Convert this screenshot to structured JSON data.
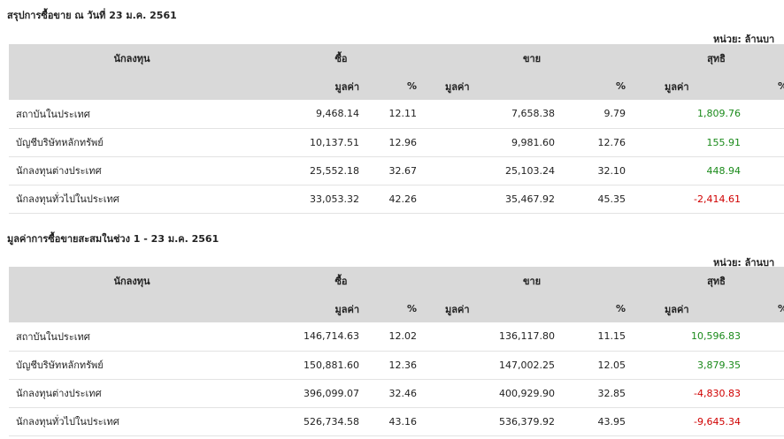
{
  "colors": {
    "positive": "#1a8a1a",
    "negative": "#d00000",
    "header_bg": "#d9d9d9",
    "accent": "#f5a623"
  },
  "columns": {
    "investor": "นักลงทุน",
    "buy": "ซื้อ",
    "sell": "ขาย",
    "net": "สุทธิ",
    "value": "มูลค่า",
    "percent": "%"
  },
  "daily": {
    "title": "สรุปการซื้อขาย ณ วันที่ 23 ม.ค. 2561",
    "unit": "หน่วย: ล้านบา",
    "rows": [
      {
        "investor": "สถาบันในประเทศ",
        "buy_value": "9,468.14",
        "buy_pct": "12.11",
        "sell_value": "7,658.38",
        "sell_pct": "9.79",
        "net_value": "1,809.76",
        "net_pct": ""
      },
      {
        "investor": "บัญชีบริษัทหลักทรัพย์",
        "buy_value": "10,137.51",
        "buy_pct": "12.96",
        "sell_value": "9,981.60",
        "sell_pct": "12.76",
        "net_value": "155.91",
        "net_pct": ""
      },
      {
        "investor": "นักลงทุนต่างประเทศ",
        "buy_value": "25,552.18",
        "buy_pct": "32.67",
        "sell_value": "25,103.24",
        "sell_pct": "32.10",
        "net_value": "448.94",
        "net_pct": ""
      },
      {
        "investor": "นักลงทุนทั่วไปในประเทศ",
        "buy_value": "33,053.32",
        "buy_pct": "42.26",
        "sell_value": "35,467.92",
        "sell_pct": "45.35",
        "net_value": "-2,414.61",
        "net_pct": ""
      }
    ]
  },
  "cumulative": {
    "title": "มูลค่าการซื้อขายสะสมในช่วง 1 - 23 ม.ค. 2561",
    "unit": "หน่วย: ล้านบา",
    "rows": [
      {
        "investor": "สถาบันในประเทศ",
        "buy_value": "146,714.63",
        "buy_pct": "12.02",
        "sell_value": "136,117.80",
        "sell_pct": "11.15",
        "net_value": "10,596.83",
        "net_pct": ""
      },
      {
        "investor": "บัญชีบริษัทหลักทรัพย์",
        "buy_value": "150,881.60",
        "buy_pct": "12.36",
        "sell_value": "147,002.25",
        "sell_pct": "12.05",
        "net_value": "3,879.35",
        "net_pct": ""
      },
      {
        "investor": "นักลงทุนต่างประเทศ",
        "buy_value": "396,099.07",
        "buy_pct": "32.46",
        "sell_value": "400,929.90",
        "sell_pct": "32.85",
        "net_value": "-4,830.83",
        "net_pct": ""
      },
      {
        "investor": "นักลงทุนทั่วไปในประเทศ",
        "buy_value": "526,734.58",
        "buy_pct": "43.16",
        "sell_value": "536,379.92",
        "sell_pct": "43.95",
        "net_value": "-9,645.34",
        "net_pct": ""
      }
    ]
  }
}
